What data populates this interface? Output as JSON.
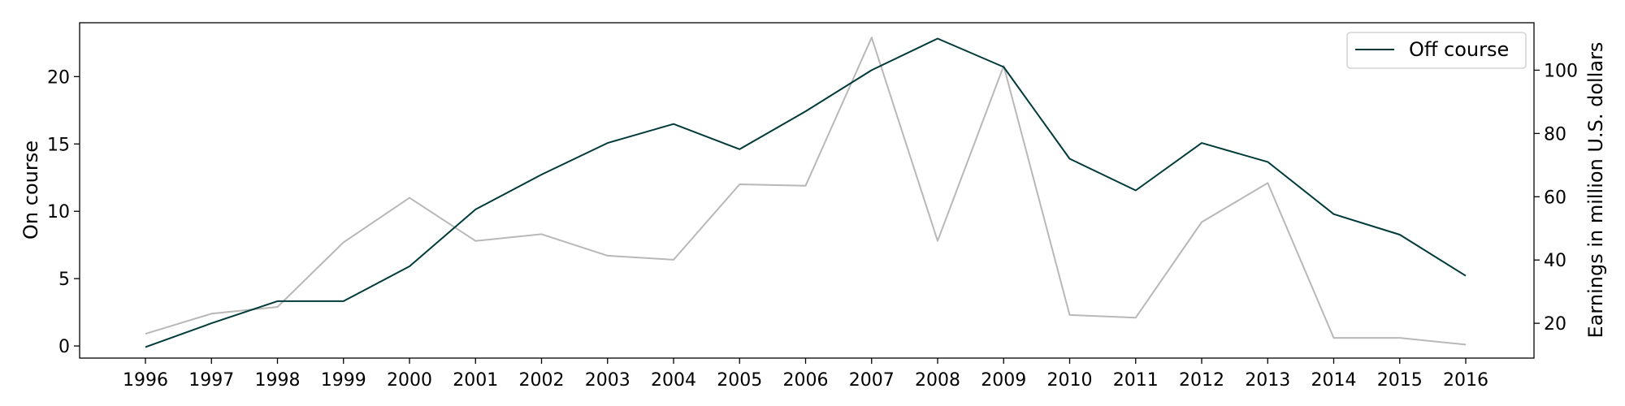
{
  "chart_data": {
    "type": "line",
    "title": "",
    "x": [
      1996,
      1997,
      1998,
      1999,
      2000,
      2001,
      2002,
      2003,
      2004,
      2005,
      2006,
      2007,
      2008,
      2009,
      2010,
      2011,
      2012,
      2013,
      2014,
      2015,
      2016
    ],
    "ylabel_left": "On course",
    "ylabel_right": "Earnings in million U.S. dollars",
    "ylim_left": [
      -0.9,
      24.0
    ],
    "ylim_right": [
      9,
      115
    ],
    "yticks_left": [
      0,
      5,
      10,
      15,
      20
    ],
    "yticks_right": [
      20,
      40,
      60,
      80,
      100
    ],
    "grid": false,
    "legend_position": "top-right",
    "series": [
      {
        "name": "",
        "axis": "left",
        "color": "#b8b8b8",
        "values": [
          0.9,
          2.4,
          2.9,
          7.7,
          11.0,
          7.8,
          8.3,
          6.7,
          6.4,
          12.0,
          11.9,
          22.9,
          7.8,
          20.8,
          2.3,
          2.1,
          9.2,
          12.1,
          0.6,
          0.6,
          0.1
        ]
      },
      {
        "name": "Off course",
        "axis": "right",
        "color": "#003a3a",
        "values": [
          12.5,
          20,
          27,
          27,
          38,
          56,
          67,
          77,
          83,
          75,
          87,
          100,
          110,
          101,
          72,
          62,
          77,
          71,
          54.5,
          48,
          35
        ]
      }
    ]
  }
}
